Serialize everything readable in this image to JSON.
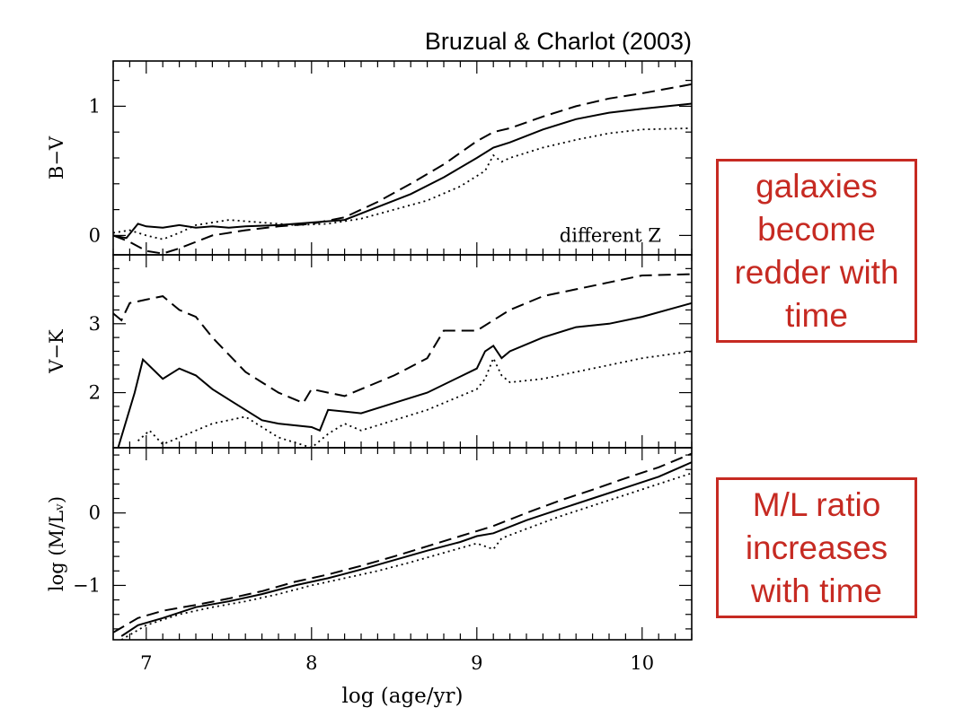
{
  "title": "Bruzual & Charlot (2003)",
  "xlabel": "log (age/yr)",
  "callouts": {
    "colors": "galaxies become redder with time",
    "ml": "M/L ratio increases with time"
  },
  "colors": {
    "accent": "#c62a22",
    "ink": "#000000"
  },
  "chart_data": [
    {
      "type": "line",
      "ylabel": "B−V",
      "annotation": "different Z",
      "xlim": [
        6.8,
        10.3
      ],
      "ylim": [
        -0.15,
        1.35
      ],
      "yticks": [
        0,
        1
      ],
      "xticks": [
        7,
        8,
        9,
        10
      ],
      "series": [
        {
          "style": "solid",
          "x": [
            6.8,
            6.88,
            6.95,
            7.0,
            7.1,
            7.2,
            7.3,
            7.4,
            7.5,
            7.6,
            7.8,
            8.0,
            8.2,
            8.4,
            8.6,
            8.8,
            9.0,
            9.1,
            9.2,
            9.4,
            9.6,
            9.8,
            10.0,
            10.3
          ],
          "y": [
            0.0,
            -0.02,
            0.09,
            0.07,
            0.06,
            0.08,
            0.06,
            0.07,
            0.06,
            0.07,
            0.08,
            0.1,
            0.12,
            0.22,
            0.32,
            0.45,
            0.6,
            0.68,
            0.72,
            0.82,
            0.9,
            0.95,
            0.98,
            1.02
          ]
        },
        {
          "style": "dashed",
          "x": [
            6.8,
            6.9,
            7.0,
            7.1,
            7.2,
            7.4,
            7.6,
            7.8,
            8.0,
            8.2,
            8.4,
            8.6,
            8.8,
            9.0,
            9.1,
            9.2,
            9.4,
            9.6,
            9.8,
            10.0,
            10.3
          ],
          "y": [
            0.0,
            -0.05,
            -0.12,
            -0.14,
            -0.1,
            0.0,
            0.04,
            0.07,
            0.09,
            0.14,
            0.26,
            0.4,
            0.55,
            0.73,
            0.8,
            0.83,
            0.92,
            1.0,
            1.06,
            1.1,
            1.17
          ]
        },
        {
          "style": "dotted",
          "x": [
            6.8,
            6.9,
            7.0,
            7.1,
            7.2,
            7.3,
            7.5,
            7.7,
            7.9,
            8.1,
            8.3,
            8.5,
            8.7,
            8.9,
            9.05,
            9.1,
            9.15,
            9.2,
            9.4,
            9.6,
            9.8,
            10.0,
            10.3
          ],
          "y": [
            0.02,
            0.04,
            0.0,
            -0.03,
            0.02,
            0.08,
            0.12,
            0.1,
            0.08,
            0.09,
            0.13,
            0.2,
            0.27,
            0.38,
            0.5,
            0.62,
            0.57,
            0.6,
            0.68,
            0.74,
            0.79,
            0.82,
            0.83
          ]
        }
      ]
    },
    {
      "type": "line",
      "ylabel": "V−K",
      "xlim": [
        6.8,
        10.3
      ],
      "ylim": [
        1.2,
        4.0
      ],
      "yticks": [
        2,
        3
      ],
      "xticks": [
        7,
        8,
        9,
        10
      ],
      "series": [
        {
          "style": "solid",
          "x": [
            6.83,
            6.93,
            6.98,
            7.1,
            7.2,
            7.3,
            7.4,
            7.5,
            7.6,
            7.7,
            7.8,
            8.0,
            8.05,
            8.1,
            8.3,
            8.5,
            8.7,
            9.0,
            9.05,
            9.1,
            9.15,
            9.2,
            9.4,
            9.6,
            9.8,
            10.0,
            10.3
          ],
          "y": [
            1.2,
            2.0,
            2.48,
            2.2,
            2.35,
            2.25,
            2.05,
            1.9,
            1.75,
            1.6,
            1.55,
            1.5,
            1.45,
            1.75,
            1.7,
            1.85,
            2.0,
            2.35,
            2.6,
            2.68,
            2.5,
            2.6,
            2.8,
            2.95,
            3.0,
            3.1,
            3.3
          ]
        },
        {
          "style": "dashed",
          "x": [
            6.8,
            6.85,
            6.9,
            7.0,
            7.1,
            7.2,
            7.3,
            7.4,
            7.5,
            7.6,
            7.7,
            7.8,
            7.95,
            8.0,
            8.1,
            8.2,
            8.3,
            8.5,
            8.7,
            8.8,
            9.0,
            9.1,
            9.2,
            9.4,
            9.6,
            9.8,
            10.0,
            10.3
          ],
          "y": [
            3.15,
            3.05,
            3.3,
            3.35,
            3.4,
            3.2,
            3.1,
            2.8,
            2.55,
            2.3,
            2.15,
            2.0,
            1.85,
            2.05,
            2.0,
            1.95,
            2.05,
            2.25,
            2.5,
            2.9,
            2.9,
            3.05,
            3.2,
            3.4,
            3.5,
            3.6,
            3.7,
            3.72
          ]
        },
        {
          "style": "dotted",
          "x": [
            6.95,
            7.02,
            7.1,
            7.2,
            7.3,
            7.4,
            7.5,
            7.6,
            7.7,
            7.8,
            8.0,
            8.1,
            8.2,
            8.3,
            8.5,
            8.7,
            8.9,
            9.0,
            9.05,
            9.1,
            9.15,
            9.2,
            9.4,
            9.6,
            9.8,
            10.0,
            10.3
          ],
          "y": [
            1.3,
            1.45,
            1.25,
            1.35,
            1.45,
            1.55,
            1.6,
            1.65,
            1.5,
            1.35,
            1.2,
            1.4,
            1.55,
            1.45,
            1.6,
            1.75,
            1.95,
            2.05,
            2.2,
            2.5,
            2.25,
            2.15,
            2.2,
            2.3,
            2.4,
            2.5,
            2.6
          ]
        }
      ]
    },
    {
      "type": "line",
      "ylabel": "log (M/Lᵥ)",
      "xlim": [
        6.8,
        10.3
      ],
      "ylim": [
        -1.75,
        0.9
      ],
      "yticks": [
        -1,
        0
      ],
      "xticks": [
        7,
        8,
        9,
        10
      ],
      "series": [
        {
          "style": "solid",
          "x": [
            6.85,
            6.95,
            7.1,
            7.3,
            7.5,
            7.7,
            7.9,
            8.1,
            8.3,
            8.5,
            8.7,
            8.9,
            9.0,
            9.1,
            9.3,
            9.5,
            9.7,
            9.9,
            10.1,
            10.3
          ],
          "y": [
            -1.7,
            -1.55,
            -1.45,
            -1.3,
            -1.22,
            -1.12,
            -1.0,
            -0.9,
            -0.78,
            -0.65,
            -0.52,
            -0.4,
            -0.32,
            -0.28,
            -0.1,
            0.05,
            0.2,
            0.35,
            0.5,
            0.7
          ]
        },
        {
          "style": "dashed",
          "x": [
            6.8,
            6.95,
            7.1,
            7.3,
            7.5,
            7.7,
            7.9,
            8.1,
            8.3,
            8.5,
            8.7,
            8.9,
            9.0,
            9.1,
            9.3,
            9.5,
            9.7,
            9.9,
            10.1,
            10.3
          ],
          "y": [
            -1.65,
            -1.45,
            -1.35,
            -1.27,
            -1.18,
            -1.08,
            -0.95,
            -0.85,
            -0.73,
            -0.6,
            -0.46,
            -0.32,
            -0.25,
            -0.18,
            0.0,
            0.17,
            0.32,
            0.48,
            0.63,
            0.82
          ]
        },
        {
          "style": "dotted",
          "x": [
            6.85,
            7.0,
            7.2,
            7.4,
            7.6,
            7.8,
            8.0,
            8.2,
            8.4,
            8.6,
            8.8,
            9.0,
            9.1,
            9.15,
            9.3,
            9.5,
            9.7,
            9.9,
            10.1,
            10.3
          ],
          "y": [
            -1.75,
            -1.55,
            -1.4,
            -1.3,
            -1.22,
            -1.12,
            -1.0,
            -0.9,
            -0.8,
            -0.68,
            -0.55,
            -0.42,
            -0.5,
            -0.35,
            -0.22,
            -0.05,
            0.1,
            0.25,
            0.4,
            0.55
          ]
        }
      ]
    }
  ]
}
